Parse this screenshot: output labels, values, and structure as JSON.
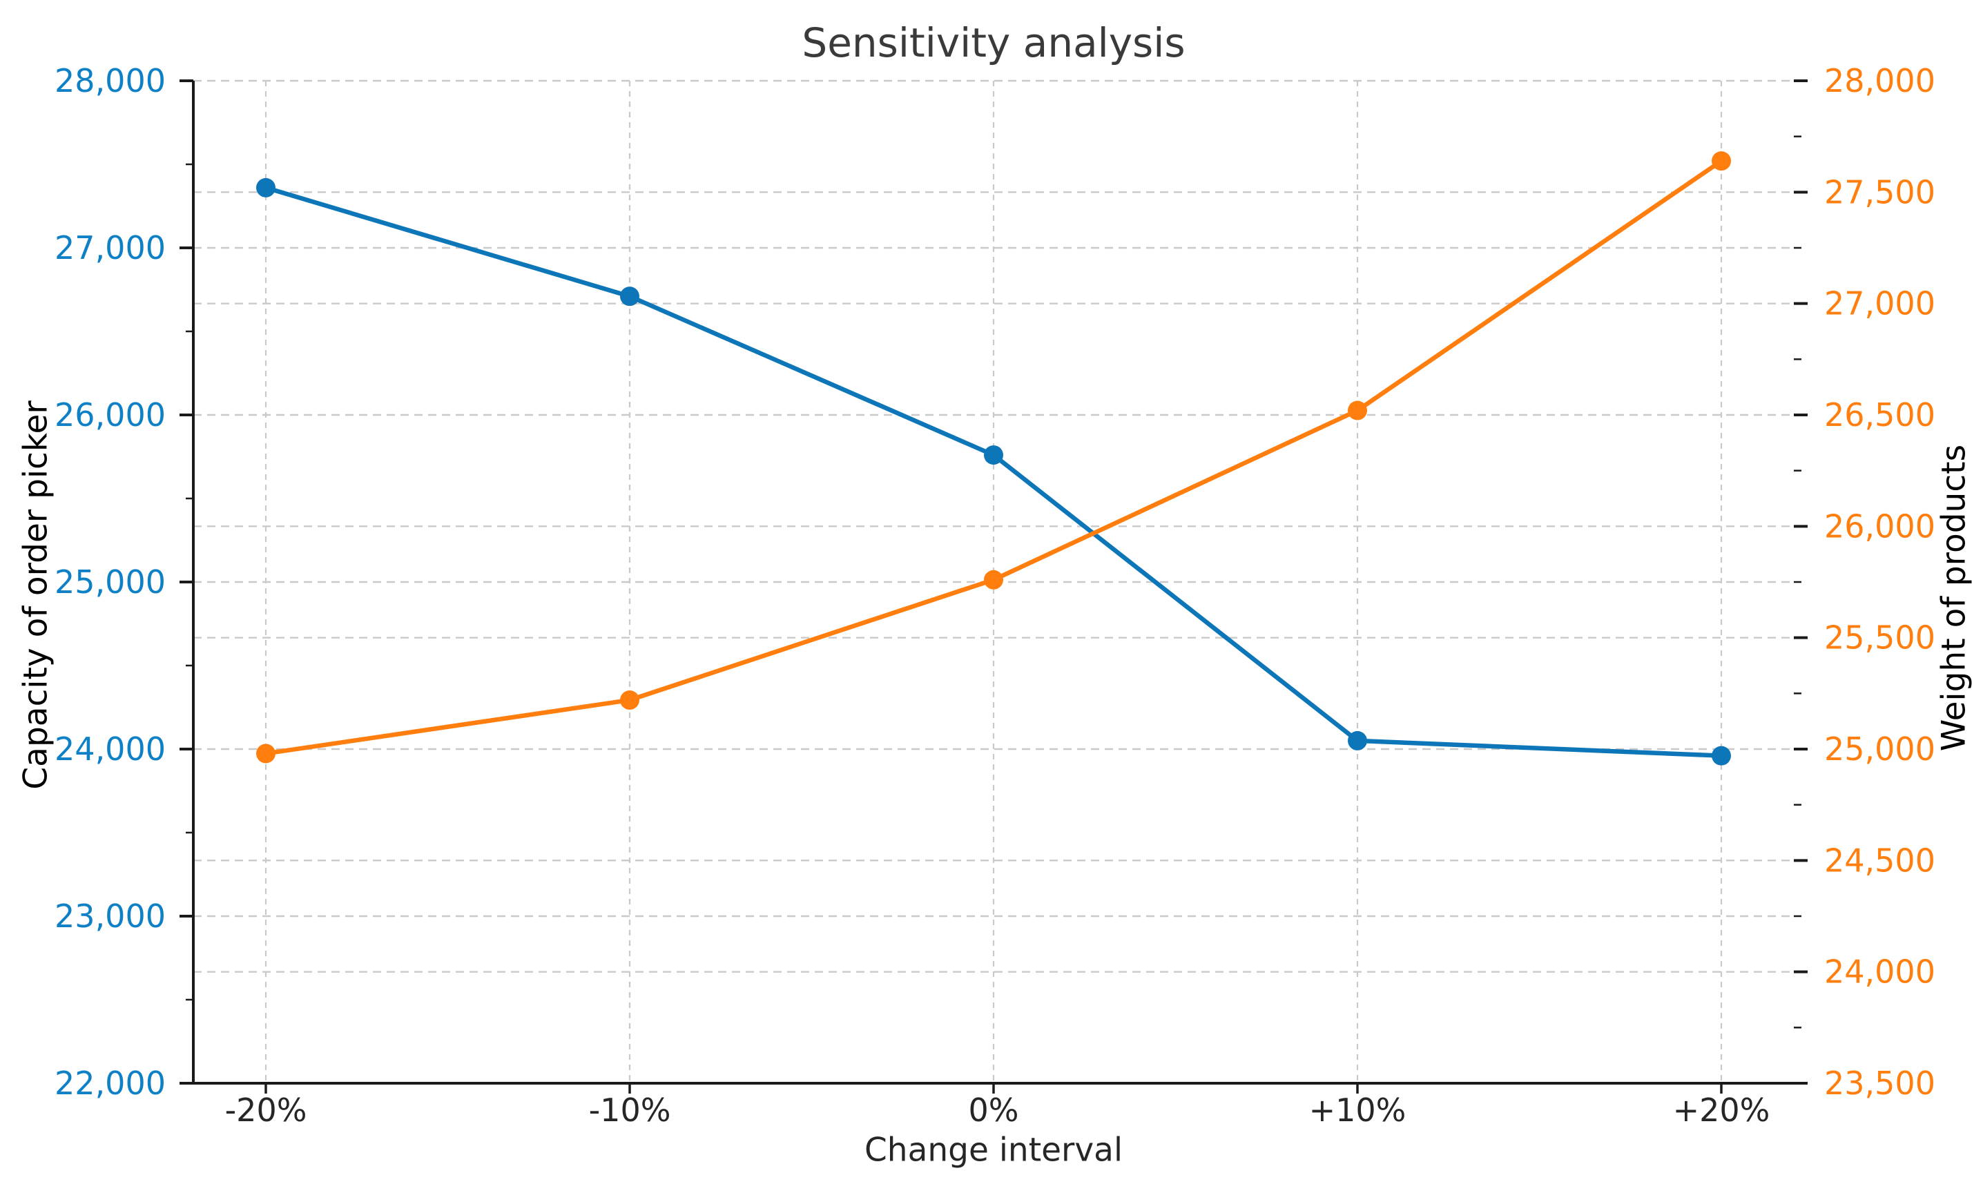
{
  "figure": {
    "title": "Sensitivity analysis",
    "background": "#ffffff",
    "title_color": "#3a3a3a",
    "tick_text_color": "#262626",
    "grid_color": "#c9c9c9",
    "spine_color": "#1a1a1a"
  },
  "chart_data": {
    "type": "line",
    "title": "Sensitivity analysis",
    "xlabel": "Change interval",
    "categories": [
      "-20%",
      "-10%",
      "0%",
      "+10%",
      "+20%"
    ],
    "series": [
      {
        "name": "Capacity of order picker",
        "axis": "left",
        "color": "#0d76b8",
        "label_color": "#0e80c5",
        "marker": "circle",
        "values": [
          27360,
          26710,
          25760,
          24050,
          23960
        ]
      },
      {
        "name": "Weight of products",
        "axis": "right",
        "color": "#ff7e0e",
        "label_color": "#ff7e0e",
        "marker": "circle",
        "values": [
          24980,
          25220,
          25760,
          26520,
          27640
        ]
      }
    ],
    "left_axis": {
      "label": "Capacity of order picker",
      "min": 22000,
      "max": 28000,
      "major_step": 1000,
      "minor_step": 500,
      "tick_labels": [
        "28,000",
        "27,000",
        "26,000",
        "25,000",
        "24,000",
        "23,000",
        "22,000"
      ]
    },
    "right_axis": {
      "label": "Weight of products",
      "min": 23500,
      "max": 28000,
      "major_step": 500,
      "minor_step": 250,
      "tick_labels": [
        "28,000",
        "27,500",
        "27,000",
        "26,500",
        "26,000",
        "25,500",
        "25,000",
        "24,500",
        "24,000",
        "23,500"
      ]
    },
    "grid": true,
    "legend": "none"
  }
}
